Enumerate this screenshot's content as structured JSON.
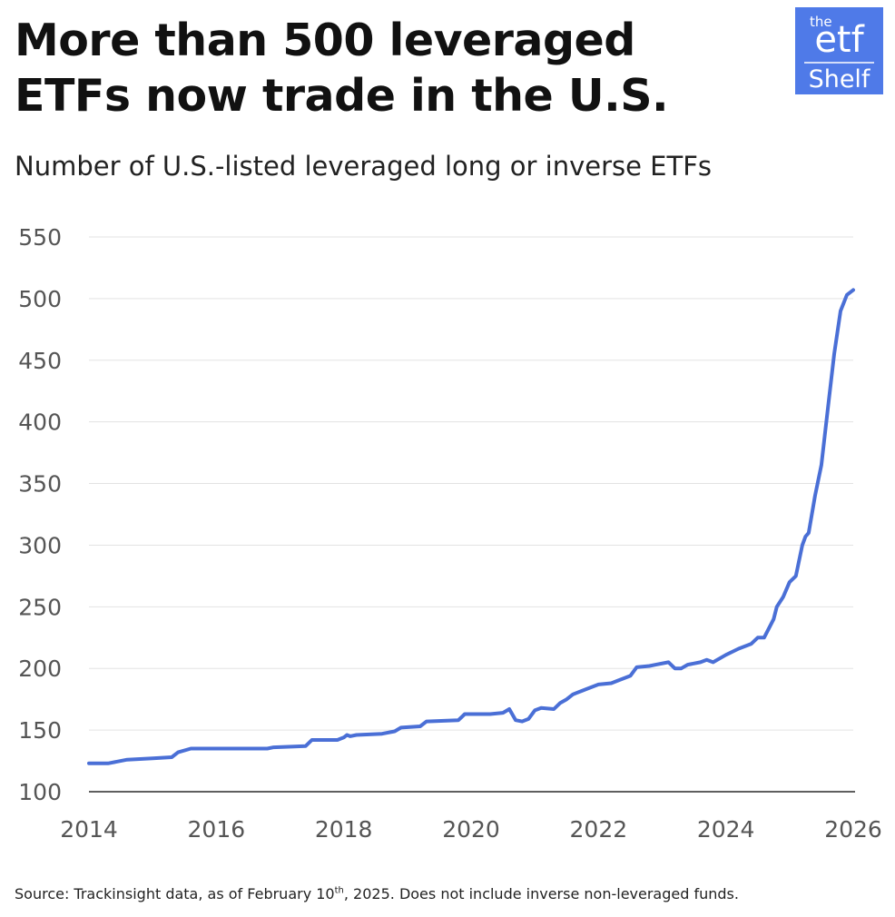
{
  "header": {
    "title_line1": "More than 500 leveraged",
    "title_line2": "ETFs now trade in the U.S.",
    "subtitle": "Number of U.S.-listed leveraged long or inverse ETFs"
  },
  "logo": {
    "the": "the",
    "etf": "etf",
    "shelf": "Shelf"
  },
  "footer": {
    "source_before": "Source: Trackinsight data, as of February 10",
    "source_sup": "th",
    "source_after": ", 2025. Does not include inverse non-leveraged funds."
  },
  "colors": {
    "line": "#4a6fd6",
    "grid": "#e3e3e3",
    "logo_bg": "#4f7ae8"
  },
  "chart_data": {
    "type": "line",
    "title": "More than 500 leveraged ETFs now trade in the U.S.",
    "subtitle": "Number of U.S.-listed leveraged long or inverse ETFs",
    "xlabel": "",
    "ylabel": "",
    "xlim": [
      2014,
      2026
    ],
    "ylim": [
      100,
      550
    ],
    "x_ticks": [
      "2014",
      "2016",
      "2018",
      "2020",
      "2022",
      "2024",
      "2026"
    ],
    "y_ticks": [
      "100",
      "150",
      "200",
      "250",
      "300",
      "350",
      "400",
      "450",
      "500",
      "550"
    ],
    "grid": "horizontal",
    "series": [
      {
        "x": [
          2014.0,
          2014.3,
          2014.6,
          2015.0,
          2015.3,
          2015.4,
          2015.6,
          2016.0,
          2016.5,
          2016.8,
          2016.9,
          2017.4,
          2017.5,
          2017.9,
          2018.0,
          2018.05,
          2018.1,
          2018.2,
          2018.6,
          2018.8,
          2018.9,
          2019.2,
          2019.3,
          2019.8,
          2019.9,
          2020.1,
          2020.3,
          2020.5,
          2020.6,
          2020.7,
          2020.8,
          2020.9,
          2021.0,
          2021.1,
          2021.3,
          2021.4,
          2021.5,
          2021.6,
          2021.8,
          2022.0,
          2022.2,
          2022.3,
          2022.5,
          2022.6,
          2022.8,
          2022.9,
          2023.1,
          2023.2,
          2023.3,
          2023.4,
          2023.6,
          2023.7,
          2023.8,
          2024.0,
          2024.2,
          2024.4,
          2024.5,
          2024.6,
          2024.75,
          2024.8,
          2024.9,
          2025.0,
          2025.1,
          2025.2,
          2025.25,
          2025.3,
          2025.4,
          2025.5,
          2025.6,
          2025.7,
          2025.8,
          2025.9,
          2026.0
        ],
        "y": [
          123,
          123,
          126,
          127,
          128,
          132,
          135,
          135,
          135,
          135,
          136,
          137,
          142,
          142,
          144,
          146,
          145,
          146,
          147,
          149,
          152,
          153,
          157,
          158,
          163,
          163,
          163,
          164,
          167,
          158,
          157,
          159,
          166,
          168,
          167,
          172,
          175,
          179,
          183,
          187,
          188,
          190,
          194,
          201,
          202,
          203,
          205,
          200,
          200,
          203,
          205,
          207,
          205,
          211,
          216,
          220,
          225,
          225,
          240,
          250,
          258,
          270,
          275,
          300,
          307,
          310,
          340,
          365,
          410,
          455,
          490,
          503,
          507
        ]
      }
    ]
  }
}
